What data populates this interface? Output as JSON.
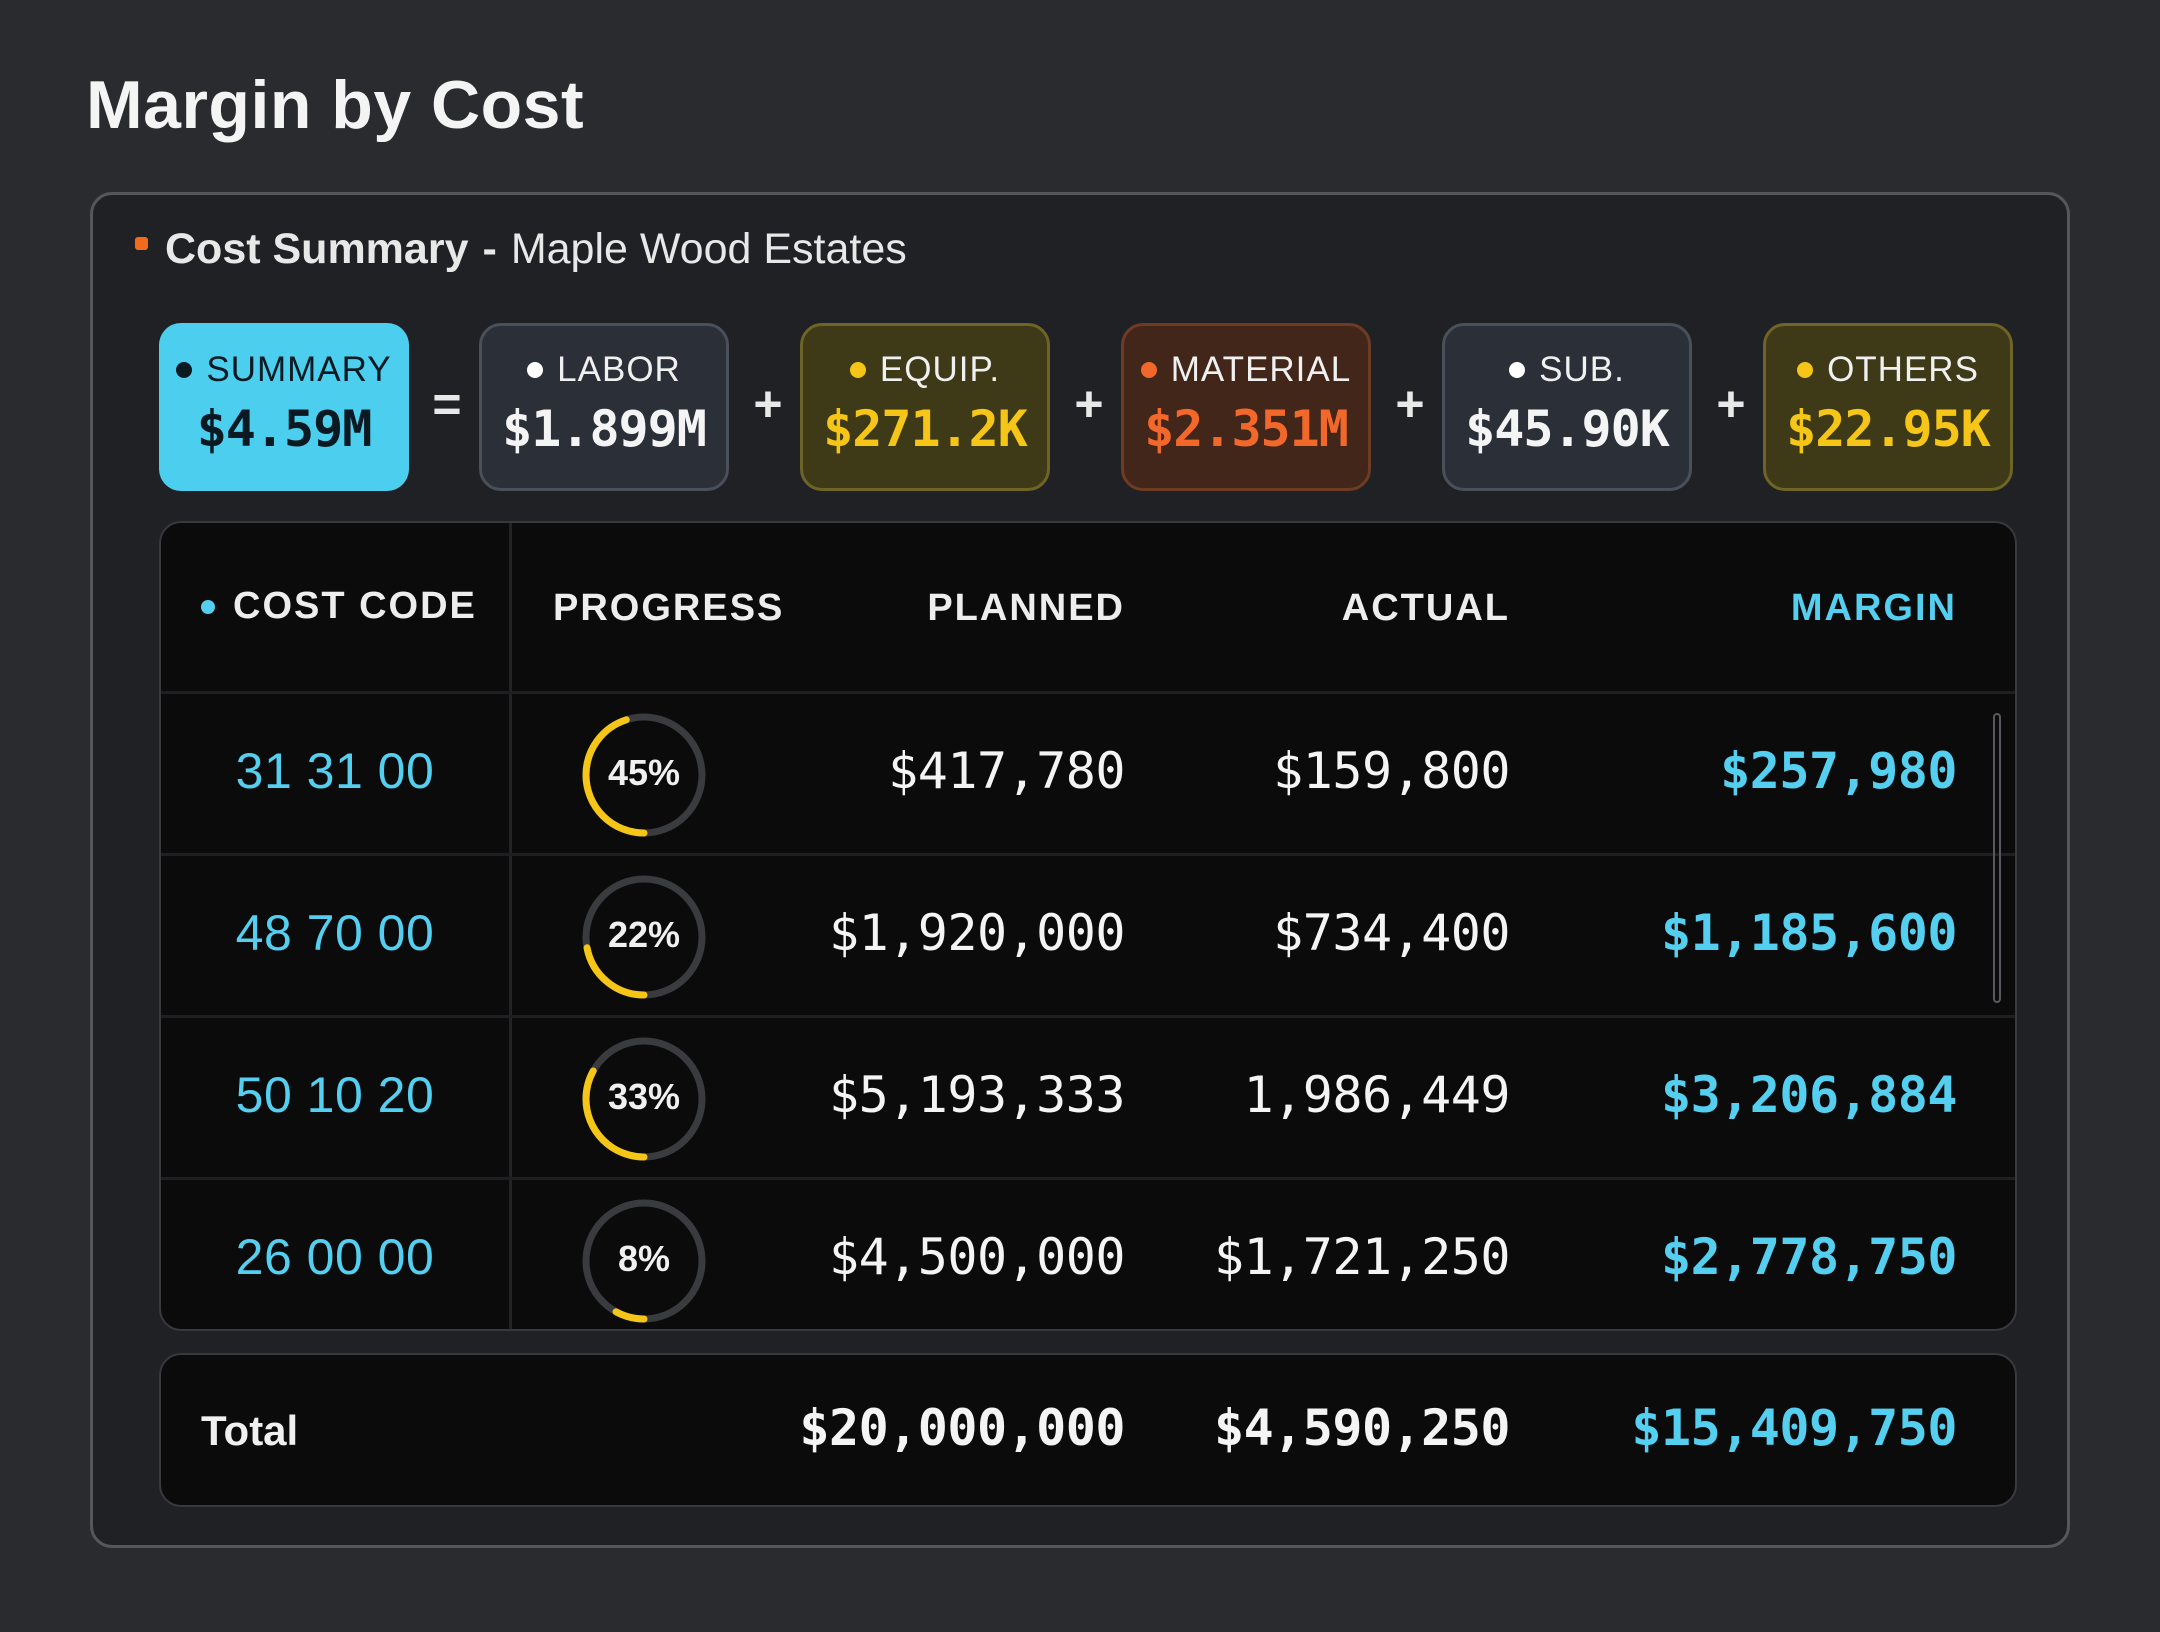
{
  "page": {
    "title": "Margin by Cost"
  },
  "panel": {
    "heading_bold": "Cost Summary",
    "heading_sep": "-",
    "heading_project": "Maple Wood Estates"
  },
  "summary_chips": [
    {
      "label": "SUMMARY",
      "value": "$4.59M"
    },
    {
      "label": "LABOR",
      "value": "$1.899M"
    },
    {
      "label": "EQUIP.",
      "value": "$271.2K"
    },
    {
      "label": "MATERIAL",
      "value": "$2.351M"
    },
    {
      "label": "SUB.",
      "value": "$45.90K"
    },
    {
      "label": "OTHERS",
      "value": "$22.95K"
    }
  ],
  "operators": [
    "=",
    "+",
    "+",
    "+",
    "+"
  ],
  "table": {
    "headers": {
      "cost_code": "COST CODE",
      "progress": "PROGRESS",
      "planned": "PLANNED",
      "actual": "ACTUAL",
      "margin": "MARGIN"
    },
    "rows": [
      {
        "code": "31 31 00",
        "progress": 0.45,
        "progress_label": "45%",
        "planned": "$417,780",
        "actual": "$159,800",
        "margin": "$257,980"
      },
      {
        "code": "48 70 00",
        "progress": 0.22,
        "progress_label": "22%",
        "planned": "$1,920,000",
        "actual": "$734,400",
        "margin": "$1,185,600"
      },
      {
        "code": "50 10 20",
        "progress": 0.33,
        "progress_label": "33%",
        "planned": "$5,193,333",
        "actual": "1,986,449",
        "margin": "$3,206,884"
      },
      {
        "code": "26 00 00",
        "progress": 0.08,
        "progress_label": "8%",
        "planned": "$4,500,000",
        "actual": "$1,721,250",
        "margin": "$2,778,750"
      }
    ]
  },
  "total": {
    "label": "Total",
    "planned": "$20,000,000",
    "actual": "$4,590,250",
    "margin": "$15,409,750"
  },
  "colors": {
    "accent_cyan": "#54cff0",
    "summary_bg": "#4ccfee",
    "labor_bg": "#2a2f38",
    "equip_bg": "#3e3a18",
    "equip_text": "#f5c518",
    "material_bg": "#42261a",
    "material_text": "#f2672a",
    "sub_bg": "#2a2f38",
    "others_bg": "#3e3a18",
    "others_text": "#f5c518",
    "progress_arc": "#f5c518"
  }
}
